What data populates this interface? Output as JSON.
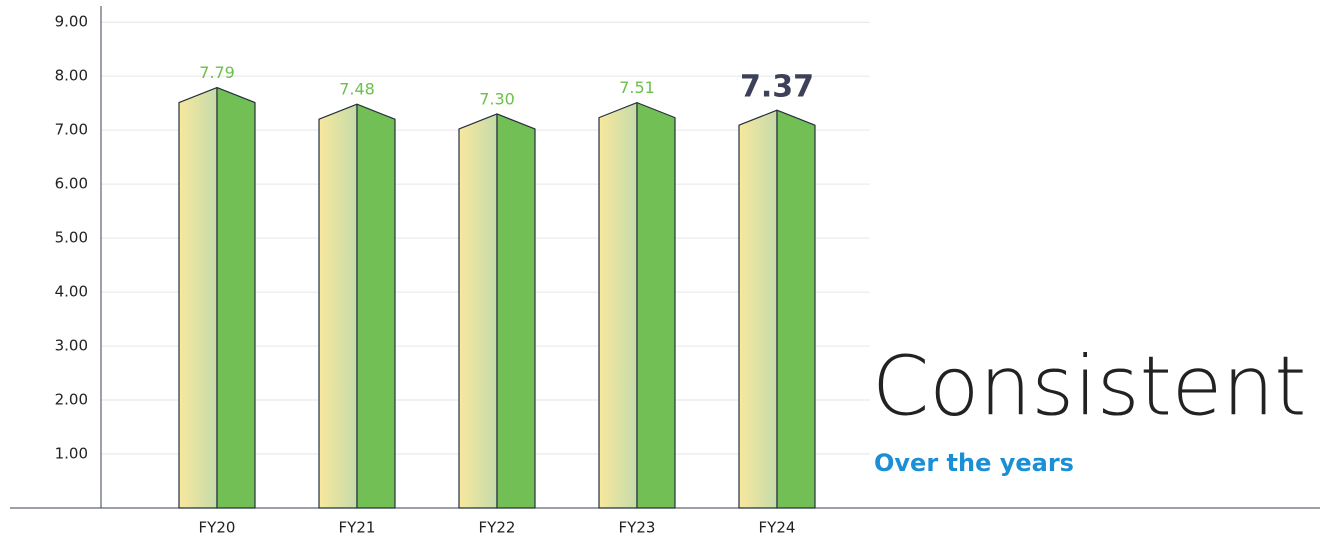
{
  "chart_data": {
    "type": "bar",
    "headline": "Consistent",
    "subheadline": "Over the years",
    "categories": [
      "FY20",
      "FY21",
      "FY22",
      "FY23",
      "FY24"
    ],
    "values": [
      7.79,
      7.48,
      7.3,
      7.51,
      7.37
    ],
    "value_labels": [
      "7.79",
      "7.48",
      "7.30",
      "7.51",
      "7.37"
    ],
    "color": "#72c055",
    "gradient_colors": [
      "#f8e89e",
      "#c5dba9"
    ],
    "label_color": "#6cc04a",
    "highlight_index": 4,
    "highlight_color": "#3d4059",
    "ylim": [
      0,
      9.3
    ],
    "yticks": [
      {
        "value": 1,
        "label": "1.00"
      },
      {
        "value": 2,
        "label": "2.00"
      },
      {
        "value": 3,
        "label": "3.00"
      },
      {
        "value": 4,
        "label": "4.00"
      },
      {
        "value": 5,
        "label": "5.00"
      },
      {
        "value": 6,
        "label": "6.00"
      },
      {
        "value": 7,
        "label": "7.00"
      },
      {
        "value": 8,
        "label": "8.00"
      },
      {
        "value": 9,
        "label": "9.00"
      }
    ],
    "grid": true
  }
}
